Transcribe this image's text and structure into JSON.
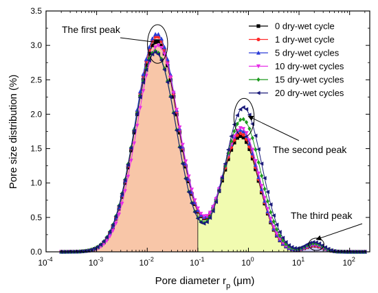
{
  "chart_data": {
    "type": "line",
    "xlabel": "Pore diameter  r",
    "xlabel_sub": "p",
    "xlabel_unit": " (μm)",
    "ylabel": "Pore size distribution (%)",
    "xscale": "log",
    "xlim": [
      0.0001,
      250
    ],
    "ylim": [
      0,
      3.5
    ],
    "x_ticks": [
      {
        "value": 0.0001,
        "base": "10",
        "exp": "-4"
      },
      {
        "value": 0.001,
        "base": "10",
        "exp": "-3"
      },
      {
        "value": 0.01,
        "base": "10",
        "exp": "-2"
      },
      {
        "value": 0.1,
        "base": "10",
        "exp": "-1"
      },
      {
        "value": 1,
        "base": "10",
        "exp": "0"
      },
      {
        "value": 10,
        "base": "10",
        "exp": "1"
      },
      {
        "value": 100,
        "base": "10",
        "exp": "2"
      }
    ],
    "y_ticks": [
      "0.0",
      "0.5",
      "1.0",
      "1.5",
      "2.0",
      "2.5",
      "3.0",
      "3.5"
    ],
    "grid": false,
    "legend_position": "top-right",
    "shaded_regions": [
      {
        "x_from": 0.0007,
        "x_to": 0.1,
        "color": "#f8c6a8"
      },
      {
        "x_from": 0.1,
        "x_to": 10,
        "color": "#f1fbb0"
      },
      {
        "x_from": 10,
        "x_to": 40,
        "color": "#c9c3ee"
      }
    ],
    "series": [
      {
        "name": "0 dry-wet cycle",
        "color": "#000000",
        "marker": "square",
        "peaks": [
          {
            "mu": 0.0155,
            "sigma": 0.42,
            "a": 3.07
          },
          {
            "mu": 0.7,
            "sigma": 0.36,
            "a": 1.68
          },
          {
            "mu": 20,
            "sigma": 0.18,
            "a": 0.09
          }
        ]
      },
      {
        "name": "1 dry-wet cycle",
        "color": "#ff2a2a",
        "marker": "circle",
        "peaks": [
          {
            "mu": 0.0155,
            "sigma": 0.42,
            "a": 3.13
          },
          {
            "mu": 0.7,
            "sigma": 0.36,
            "a": 1.72
          },
          {
            "mu": 20,
            "sigma": 0.18,
            "a": 0.09
          }
        ]
      },
      {
        "name": "5 dry-wet cycles",
        "color": "#2a3bd6",
        "marker": "triangle-up",
        "peaks": [
          {
            "mu": 0.0155,
            "sigma": 0.42,
            "a": 3.17
          },
          {
            "mu": 0.7,
            "sigma": 0.36,
            "a": 1.77
          },
          {
            "mu": 20,
            "sigma": 0.18,
            "a": 0.11
          }
        ]
      },
      {
        "name": "10 dry-wet cycles",
        "color": "#e62ee6",
        "marker": "triangle-down",
        "peaks": [
          {
            "mu": 0.0165,
            "sigma": 0.42,
            "a": 3.0
          },
          {
            "mu": 0.72,
            "sigma": 0.36,
            "a": 1.8
          },
          {
            "mu": 20,
            "sigma": 0.18,
            "a": 0.1
          }
        ]
      },
      {
        "name": "15 dry-wet cycles",
        "color": "#1f9b1f",
        "marker": "diamond",
        "peaks": [
          {
            "mu": 0.0145,
            "sigma": 0.42,
            "a": 2.92
          },
          {
            "mu": 0.76,
            "sigma": 0.36,
            "a": 1.93
          },
          {
            "mu": 20,
            "sigma": 0.18,
            "a": 0.12
          }
        ]
      },
      {
        "name": "20 dry-wet cycles",
        "color": "#1a1a7a",
        "marker": "triangle-left",
        "peaks": [
          {
            "mu": 0.0145,
            "sigma": 0.42,
            "a": 2.9
          },
          {
            "mu": 0.8,
            "sigma": 0.36,
            "a": 2.1
          },
          {
            "mu": 20,
            "sigma": 0.18,
            "a": 0.14
          }
        ]
      }
    ],
    "annotations": [
      {
        "text": "The first peak",
        "target": [
          0.017,
          3.02
        ]
      },
      {
        "text": "The second peak",
        "target": [
          1.0,
          1.95
        ]
      },
      {
        "text": "The third peak",
        "target": [
          22,
          0.16
        ]
      }
    ],
    "peak_circles": [
      {
        "x": 0.016,
        "y": 3.02,
        "rx_dec": 0.2,
        "ry_val": 0.28
      },
      {
        "x": 0.82,
        "y": 1.95,
        "rx_dec": 0.2,
        "ry_val": 0.28
      },
      {
        "x": 22,
        "y": 0.11,
        "rx_dec": 0.15,
        "ry_val": 0.09
      }
    ]
  }
}
